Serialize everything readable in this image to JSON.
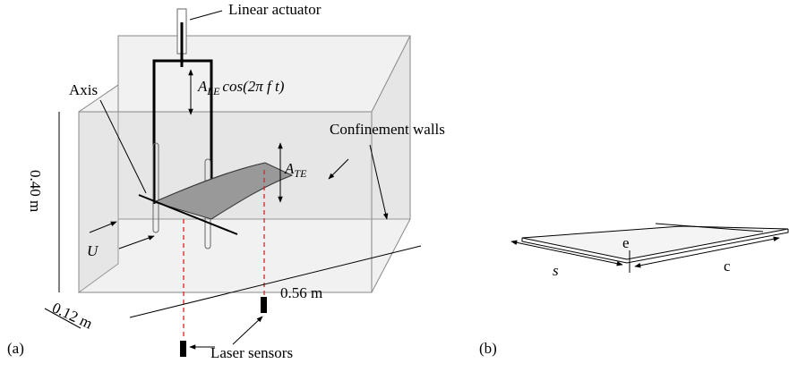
{
  "linear_actuator": "Linear actuator",
  "leading_edge_motion": {
    "base": "A",
    "sub": "LE",
    "rest": "cos(2π f t)"
  },
  "axis": "Axis",
  "confinement_walls": "Confinement walls",
  "trailing_edge_amplitude": {
    "base": "A",
    "sub": "TE"
  },
  "height": "0.40 m",
  "flow": "U",
  "width": "0.12 m",
  "length": "0.56 m",
  "laser_sensors": "Laser sensors",
  "panel_a": "(a)",
  "panel_b": "(b)",
  "thickness": "e",
  "span": "s",
  "chord": "c"
}
